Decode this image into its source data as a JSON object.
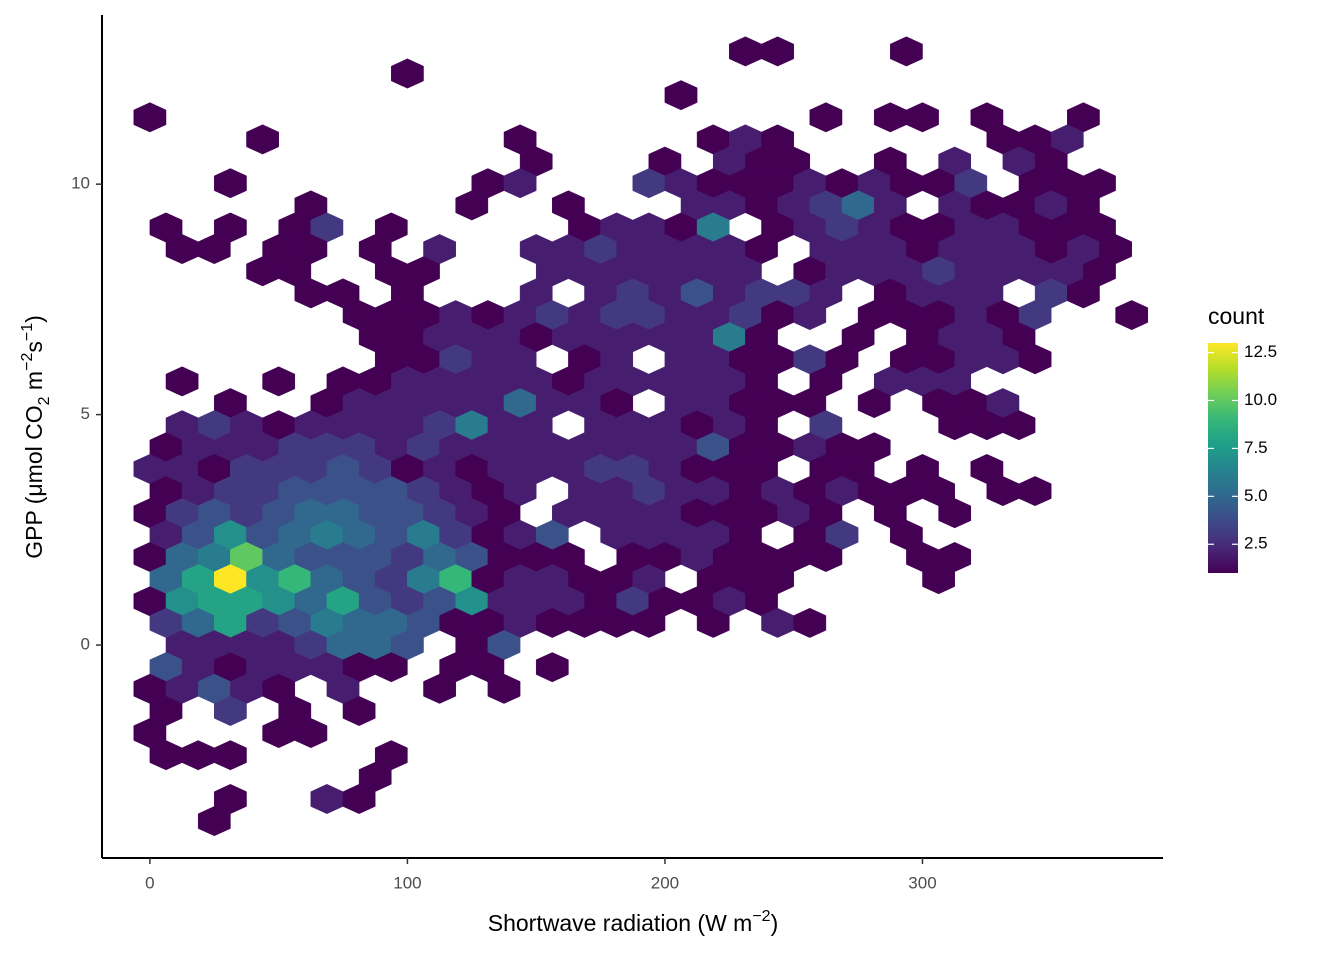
{
  "chart_data": {
    "type": "hexbin",
    "xlabel": [
      "Shortwave radiation (W m",
      "−2",
      ")"
    ],
    "ylabel": [
      "GPP (μmol CO",
      "2",
      " m",
      "−2",
      "s",
      "−1",
      ")"
    ],
    "xlim": [
      -18.6,
      393.4
    ],
    "ylim": [
      -4.62,
      13.67
    ],
    "xticks": [
      0,
      100,
      200,
      300
    ],
    "yticks": [
      0,
      5,
      10
    ],
    "legend_title": "count",
    "clim": [
      1,
      13
    ],
    "colorbar_ticks": [
      2.5,
      {
        "value": 5,
        "label": "5.0"
      },
      7.5,
      {
        "value": 10,
        "label": "10.0"
      },
      12.5
    ],
    "colormap": [
      "#440154",
      "#482878",
      "#3e4989",
      "#31688e",
      "#26828e",
      "#1f9e89",
      "#35b779",
      "#6ece58",
      "#b5de2b",
      "#fde725"
    ],
    "rows": [
      {
        "y": 12.88,
        "x": [
          231.25,
          243.75,
          293.75
        ],
        "counts": [
          1,
          1,
          1
        ]
      },
      {
        "y": 12.4,
        "x": [
          100
        ],
        "counts": [
          1
        ]
      },
      {
        "y": 11.93,
        "x": [
          206.25
        ],
        "counts": [
          1
        ]
      },
      {
        "y": 11.45,
        "x": [
          0,
          262.5,
          287.5,
          300,
          325,
          362.5
        ],
        "counts": [
          1,
          1,
          1,
          1,
          1,
          1
        ]
      },
      {
        "y": 10.97,
        "x": [
          43.75,
          143.75,
          218.75,
          231.25,
          243.75,
          331.25,
          343.75,
          356.25
        ],
        "counts": [
          1,
          1,
          1,
          2,
          1,
          1,
          1,
          2
        ]
      },
      {
        "y": 10.49,
        "x": [
          150,
          200,
          225,
          237.5,
          250,
          287.5,
          312.5,
          337.5,
          350
        ],
        "counts": [
          1,
          1,
          2,
          1,
          1,
          1,
          2,
          2,
          1
        ]
      },
      {
        "y": 10.02,
        "x": [
          31.25,
          131.25,
          143.75,
          193.75,
          206.25,
          218.75,
          231.25,
          243.75,
          256.25,
          268.75,
          281.25,
          293.75,
          306.25,
          318.75,
          343.75,
          356.25,
          368.75
        ],
        "counts": [
          1,
          1,
          2,
          3,
          2,
          1,
          1,
          1,
          2,
          1,
          2,
          1,
          1,
          3,
          1,
          1,
          1
        ]
      },
      {
        "y": 9.54,
        "x": [
          62.5,
          125,
          162.5,
          212.5,
          225,
          237.5,
          250,
          262.5,
          275,
          287.5,
          312.5,
          325,
          337.5,
          350,
          362.5
        ],
        "counts": [
          1,
          1,
          1,
          2,
          2,
          1,
          2,
          3,
          5,
          2,
          2,
          1,
          1,
          2,
          1
        ]
      },
      {
        "y": 9.06,
        "x": [
          6.25,
          31.25,
          56.25,
          68.75,
          93.75,
          168.75,
          181.25,
          193.75,
          206.25,
          218.75,
          243.75,
          256.25,
          268.75,
          281.25,
          293.75,
          306.25,
          318.75,
          331.25,
          343.75,
          356.25,
          368.75
        ],
        "counts": [
          1,
          1,
          1,
          3,
          1,
          1,
          2,
          2,
          1,
          6,
          1,
          2,
          3,
          2,
          1,
          1,
          2,
          2,
          1,
          1,
          1
        ]
      },
      {
        "y": 8.59,
        "x": [
          12.5,
          25,
          50,
          62.5,
          87.5,
          112.5,
          150,
          162.5,
          175,
          187.5,
          200,
          212.5,
          225,
          237.5,
          262.5,
          275,
          287.5,
          300,
          312.5,
          325,
          337.5,
          350,
          362.5,
          375
        ],
        "counts": [
          1,
          1,
          1,
          1,
          1,
          2,
          2,
          2,
          3,
          2,
          2,
          2,
          2,
          1,
          2,
          2,
          2,
          1,
          2,
          2,
          2,
          1,
          2,
          1
        ]
      },
      {
        "y": 8.11,
        "x": [
          43.75,
          56.25,
          93.75,
          106.25,
          156.25,
          168.75,
          181.25,
          193.75,
          206.25,
          218.75,
          231.25,
          256.25,
          268.75,
          281.25,
          293.75,
          306.25,
          318.75,
          331.25,
          343.75,
          356.25,
          368.75
        ],
        "counts": [
          1,
          1,
          1,
          1,
          2,
          2,
          2,
          2,
          2,
          2,
          2,
          1,
          2,
          2,
          2,
          3,
          2,
          2,
          2,
          2,
          1
        ]
      },
      {
        "y": 7.63,
        "x": [
          62.5,
          75,
          100,
          150,
          175,
          187.5,
          200,
          212.5,
          225,
          237.5,
          250,
          262.5,
          287.5,
          300,
          312.5,
          325,
          350,
          362.5
        ],
        "counts": [
          1,
          1,
          1,
          2,
          2,
          3,
          2,
          4,
          2,
          3,
          3,
          2,
          1,
          2,
          2,
          2,
          3,
          1
        ]
      },
      {
        "y": 7.16,
        "x": [
          81.25,
          93.75,
          106.25,
          118.75,
          131.25,
          143.75,
          156.25,
          168.75,
          181.25,
          193.75,
          206.25,
          218.75,
          231.25,
          243.75,
          256.25,
          281.25,
          293.75,
          306.25,
          318.75,
          331.25,
          343.75,
          381.25
        ],
        "counts": [
          1,
          1,
          1,
          2,
          1,
          2,
          3,
          2,
          3,
          3,
          2,
          2,
          3,
          1,
          2,
          1,
          1,
          1,
          2,
          1,
          3,
          1
        ]
      },
      {
        "y": 6.68,
        "x": [
          87.5,
          100,
          112.5,
          125,
          137.5,
          150,
          162.5,
          175,
          187.5,
          200,
          212.5,
          225,
          237.5,
          275,
          300,
          312.5,
          325,
          337.5
        ],
        "counts": [
          1,
          1,
          2,
          2,
          2,
          1,
          2,
          2,
          2,
          2,
          2,
          6,
          1,
          1,
          1,
          2,
          2,
          1
        ]
      },
      {
        "y": 6.2,
        "x": [
          93.75,
          106.25,
          118.75,
          131.25,
          143.75,
          168.75,
          181.25,
          206.25,
          218.75,
          231.25,
          243.75,
          256.25,
          268.75,
          293.75,
          306.25,
          318.75,
          331.25,
          343.75
        ],
        "counts": [
          1,
          1,
          3,
          2,
          2,
          1,
          2,
          2,
          2,
          1,
          1,
          3,
          1,
          1,
          1,
          2,
          2,
          1
        ]
      },
      {
        "y": 5.72,
        "x": [
          12.5,
          50,
          75,
          87.5,
          100,
          112.5,
          125,
          137.5,
          150,
          162.5,
          175,
          187.5,
          200,
          212.5,
          225,
          237.5,
          262.5,
          287.5,
          300,
          312.5
        ],
        "counts": [
          1,
          1,
          1,
          1,
          2,
          2,
          2,
          2,
          2,
          1,
          2,
          2,
          2,
          2,
          2,
          1,
          1,
          2,
          2,
          2
        ]
      },
      {
        "y": 5.25,
        "x": [
          31.25,
          68.75,
          81.25,
          93.75,
          106.25,
          118.75,
          131.25,
          143.75,
          156.25,
          168.75,
          181.25,
          206.25,
          218.75,
          231.25,
          243.75,
          256.25,
          281.25,
          306.25,
          318.75,
          331.25
        ],
        "counts": [
          1,
          1,
          2,
          2,
          2,
          2,
          2,
          5,
          2,
          2,
          1,
          2,
          2,
          1,
          1,
          1,
          1,
          1,
          1,
          2
        ]
      },
      {
        "y": 4.77,
        "x": [
          12.5,
          25,
          37.5,
          50,
          62.5,
          75,
          87.5,
          100,
          112.5,
          125,
          137.5,
          150,
          175,
          187.5,
          200,
          212.5,
          225,
          237.5,
          262.5,
          312.5,
          325,
          337.5
        ],
        "counts": [
          2,
          3,
          2,
          1,
          2,
          2,
          2,
          2,
          3,
          6,
          2,
          2,
          2,
          2,
          2,
          1,
          2,
          1,
          3,
          1,
          1,
          1
        ]
      },
      {
        "y": 4.29,
        "x": [
          6.25,
          18.75,
          31.25,
          43.75,
          56.25,
          68.75,
          81.25,
          93.75,
          106.25,
          118.75,
          131.25,
          143.75,
          156.25,
          168.75,
          181.25,
          193.75,
          206.25,
          218.75,
          231.25,
          243.75,
          256.25,
          268.75,
          281.25
        ],
        "counts": [
          1,
          2,
          2,
          2,
          3,
          3,
          3,
          2,
          3,
          2,
          2,
          2,
          2,
          2,
          2,
          2,
          2,
          4,
          1,
          1,
          2,
          1,
          1
        ]
      },
      {
        "y": 3.82,
        "x": [
          0,
          12.5,
          25,
          37.5,
          50,
          62.5,
          75,
          87.5,
          100,
          112.5,
          125,
          137.5,
          150,
          162.5,
          175,
          187.5,
          200,
          212.5,
          225,
          237.5,
          262.5,
          275,
          300,
          325
        ],
        "counts": [
          2,
          2,
          1,
          3,
          3,
          3,
          4,
          3,
          1,
          2,
          1,
          2,
          2,
          2,
          3,
          3,
          2,
          1,
          1,
          1,
          1,
          1,
          1,
          1
        ]
      },
      {
        "y": 3.34,
        "x": [
          6.25,
          18.75,
          31.25,
          43.75,
          56.25,
          68.75,
          81.25,
          93.75,
          106.25,
          118.75,
          131.25,
          143.75,
          168.75,
          181.25,
          193.75,
          206.25,
          218.75,
          231.25,
          243.75,
          256.25,
          268.75,
          281.25,
          293.75,
          306.25,
          331.25,
          343.75
        ],
        "counts": [
          1,
          2,
          3,
          3,
          4,
          4,
          4,
          4,
          3,
          2,
          1,
          2,
          2,
          2,
          3,
          2,
          2,
          1,
          2,
          1,
          2,
          1,
          1,
          1,
          1,
          1
        ]
      },
      {
        "y": 2.86,
        "x": [
          0,
          12.5,
          25,
          37.5,
          50,
          62.5,
          75,
          87.5,
          100,
          112.5,
          125,
          137.5,
          162.5,
          175,
          187.5,
          200,
          212.5,
          225,
          237.5,
          250,
          262.5,
          287.5,
          312.5
        ],
        "counts": [
          1,
          3,
          4,
          3,
          4,
          5,
          5,
          4,
          4,
          3,
          2,
          1,
          2,
          2,
          2,
          2,
          1,
          1,
          1,
          2,
          1,
          1,
          1
        ]
      },
      {
        "y": 2.39,
        "x": [
          6.25,
          18.75,
          31.25,
          43.75,
          56.25,
          68.75,
          81.25,
          93.75,
          106.25,
          118.75,
          131.25,
          143.75,
          156.25,
          181.25,
          193.75,
          206.25,
          218.75,
          231.25,
          256.25,
          268.75,
          293.75
        ],
        "counts": [
          2,
          4,
          7,
          4,
          5,
          6,
          5,
          4,
          6,
          3,
          1,
          2,
          4,
          2,
          2,
          2,
          2,
          1,
          1,
          3,
          1
        ]
      },
      {
        "y": 1.91,
        "x": [
          0,
          12.5,
          25,
          37.5,
          50,
          62.5,
          75,
          87.5,
          100,
          112.5,
          125,
          137.5,
          150,
          162.5,
          187.5,
          200,
          212.5,
          225,
          237.5,
          250,
          262.5,
          300,
          312.5
        ],
        "counts": [
          1,
          5,
          6,
          10,
          5,
          4,
          4,
          4,
          3,
          5,
          4,
          1,
          1,
          1,
          1,
          1,
          2,
          1,
          1,
          1,
          1,
          1,
          1
        ]
      },
      {
        "y": 1.43,
        "x": [
          6.25,
          18.75,
          31.25,
          43.75,
          56.25,
          68.75,
          81.25,
          93.75,
          106.25,
          118.75,
          131.25,
          143.75,
          156.25,
          168.75,
          181.25,
          193.75,
          218.75,
          231.25,
          243.75,
          306.25
        ],
        "counts": [
          5,
          8,
          13,
          7,
          9,
          5,
          4,
          3,
          6,
          9,
          1,
          2,
          2,
          1,
          1,
          2,
          1,
          1,
          1,
          1
        ]
      },
      {
        "y": 0.95,
        "x": [
          0,
          12.5,
          25,
          37.5,
          50,
          62.5,
          75,
          87.5,
          100,
          112.5,
          125,
          137.5,
          150,
          162.5,
          175,
          187.5,
          200,
          212.5,
          225,
          237.5
        ],
        "counts": [
          1,
          7,
          8,
          8,
          7,
          5,
          8,
          4,
          3,
          4,
          7,
          2,
          2,
          2,
          1,
          3,
          1,
          1,
          2,
          1
        ]
      },
      {
        "y": 0.48,
        "x": [
          6.25,
          18.75,
          31.25,
          43.75,
          56.25,
          68.75,
          81.25,
          93.75,
          106.25,
          118.75,
          131.25,
          143.75,
          156.25,
          168.75,
          181.25,
          193.75,
          218.75,
          243.75,
          256.25
        ],
        "counts": [
          3,
          5,
          8,
          3,
          4,
          6,
          5,
          5,
          4,
          1,
          1,
          2,
          1,
          1,
          1,
          1,
          1,
          2,
          1
        ]
      },
      {
        "y": 0,
        "x": [
          12.5,
          25,
          37.5,
          50,
          62.5,
          75,
          87.5,
          100,
          125,
          137.5
        ],
        "counts": [
          2,
          2,
          2,
          2,
          3,
          5,
          5,
          4,
          1,
          4
        ]
      },
      {
        "y": -0.48,
        "x": [
          6.25,
          18.75,
          31.25,
          43.75,
          56.25,
          68.75,
          81.25,
          93.75,
          118.75,
          131.25,
          156.25
        ],
        "counts": [
          4,
          2,
          1,
          2,
          2,
          2,
          1,
          1,
          1,
          1,
          1
        ]
      },
      {
        "y": -0.95,
        "x": [
          0,
          12.5,
          25,
          37.5,
          50,
          75,
          112.5,
          137.5
        ],
        "counts": [
          1,
          2,
          4,
          2,
          1,
          2,
          1,
          1
        ]
      },
      {
        "y": -1.43,
        "x": [
          6.25,
          31.25,
          56.25,
          81.25
        ],
        "counts": [
          1,
          3,
          1,
          1
        ]
      },
      {
        "y": -1.91,
        "x": [
          0,
          50,
          62.5
        ],
        "counts": [
          1,
          1,
          1
        ]
      },
      {
        "y": -2.39,
        "x": [
          6.25,
          18.75,
          31.25,
          93.75
        ],
        "counts": [
          1,
          1,
          1,
          1
        ]
      },
      {
        "y": -2.86,
        "x": [
          87.5
        ],
        "counts": [
          1
        ]
      },
      {
        "y": -3.34,
        "x": [
          31.25,
          68.75,
          81.25
        ],
        "counts": [
          1,
          2,
          1
        ]
      },
      {
        "y": -3.82,
        "x": [
          25
        ],
        "counts": [
          1
        ]
      }
    ]
  }
}
